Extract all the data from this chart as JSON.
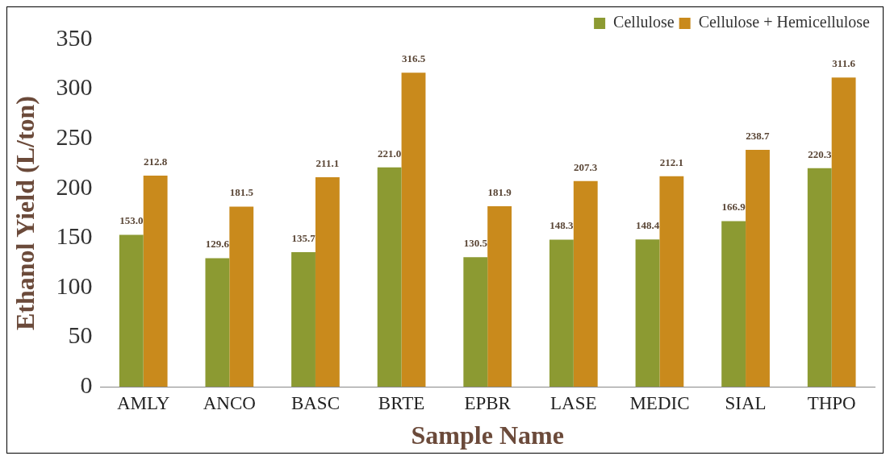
{
  "chart_data": {
    "type": "bar",
    "xlabel": "Sample Name",
    "ylabel": "Ethanol Yield (L/ton)",
    "categories": [
      "AMLY",
      "ANCO",
      "BASC",
      "BRTE",
      "EPBR",
      "LASE",
      "MEDIC",
      "SIAL",
      "THPO"
    ],
    "series": [
      {
        "name": "Cellulose",
        "color": "#8c9a32",
        "values": [
          153.0,
          129.6,
          135.7,
          221.0,
          130.5,
          148.3,
          148.4,
          166.9,
          220.3
        ],
        "value_labels": [
          "153.0",
          "129.6",
          "135.7",
          "221.0",
          "130.5",
          "148.3",
          "148.4",
          "166.9",
          "220.3"
        ]
      },
      {
        "name": "Cellulose + Hemicellulose",
        "color": "#c98a1c",
        "values": [
          212.8,
          181.5,
          211.1,
          316.5,
          181.9,
          207.3,
          212.1,
          238.7,
          311.6
        ],
        "value_labels": [
          "212.8",
          "181.5",
          "211.1",
          "316.5",
          "181.9",
          "207.3",
          "212.1",
          "238.7",
          "311.6"
        ]
      }
    ],
    "ylim": [
      0,
      350
    ],
    "yticks": [
      0,
      50,
      100,
      150,
      200,
      250,
      300,
      350
    ],
    "grid": false,
    "legend": "top right"
  }
}
